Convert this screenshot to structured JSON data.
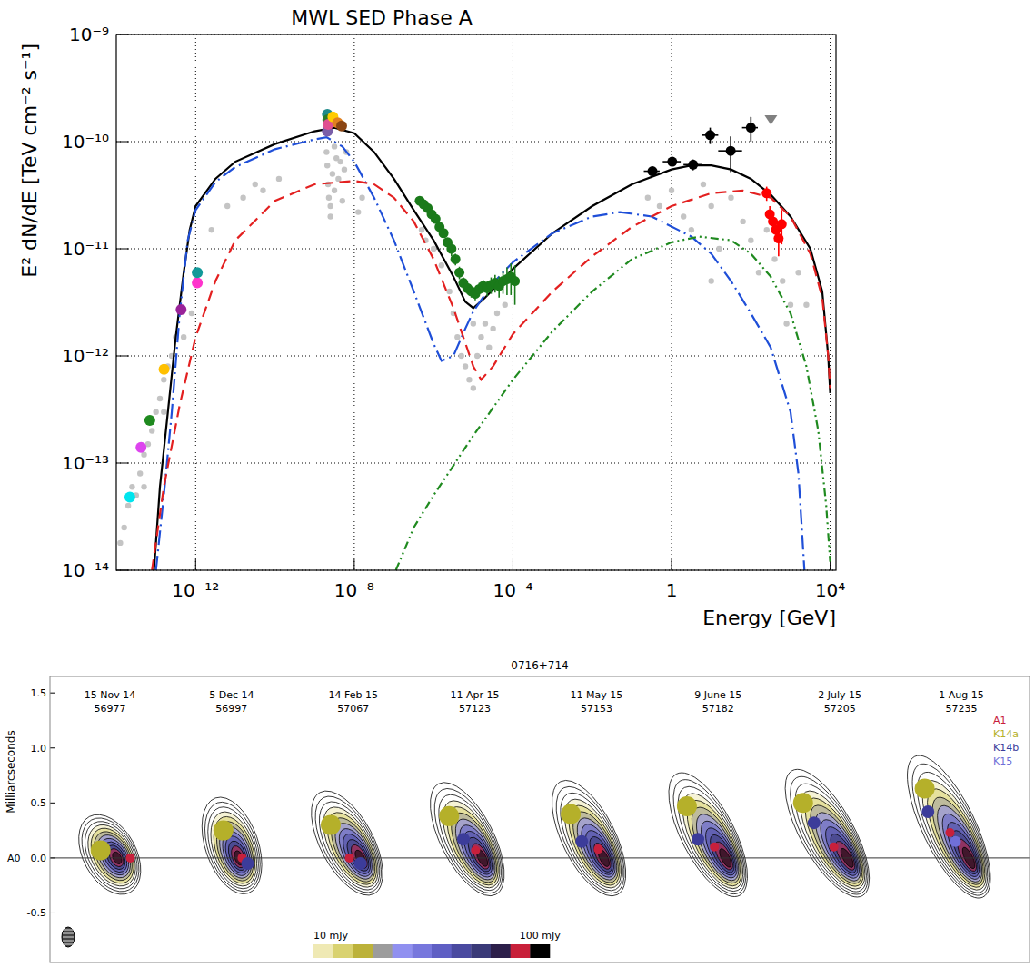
{
  "chart_data": [
    {
      "type": "scatter",
      "title": "MWL SED Phase A",
      "x_label": "Energy [GeV]",
      "y_label": "E² dN/dE [TeV cm⁻² s⁻¹]",
      "log": true,
      "grid": true,
      "xlim": [
        1e-14,
        14000
      ],
      "ylim": [
        1e-14,
        1e-09
      ],
      "xticks": [
        {
          "value": 1e-12,
          "label": "10⁻¹²"
        },
        {
          "value": 1e-08,
          "label": "10⁻⁸"
        },
        {
          "value": 0.0001,
          "label": "10⁻⁴"
        },
        1,
        {
          "value": 10000,
          "label": "10⁴"
        }
      ],
      "yticks": [
        {
          "value": 1e-14,
          "label": "10⁻¹⁴"
        },
        {
          "value": 1e-13,
          "label": "10⁻¹³"
        },
        {
          "value": 1e-12,
          "label": "10⁻¹²"
        },
        {
          "value": 1e-11,
          "label": "10⁻¹¹"
        },
        {
          "value": 1e-10,
          "label": "10⁻¹⁰"
        },
        {
          "value": 1e-09,
          "label": "10⁻⁹"
        }
      ],
      "series": [
        {
          "type": "scatter",
          "marker": "circle",
          "color": "#c4c4c4",
          "x": [
            1.26e-14,
            1.58e-14,
            2e-14,
            2.51e-14,
            3.16e-14,
            3.98e-14,
            5.01e-14,
            6.31e-14,
            7.94e-14,
            1e-13,
            1.26e-13,
            1.58e-13,
            2e-13,
            2.51e-13,
            3.16e-13,
            1.58e-13,
            5.01e-14,
            5.01e-13,
            7.94e-13,
            2.51e-12,
            6.31e-12,
            1.58e-11,
            3.16e-11,
            5.01e-11,
            1.26e-10,
            2e-09,
            2.09e-09,
            2.19e-09,
            2.29e-09,
            2.51e-09,
            2.82e-09,
            3.16e-09,
            3.55e-09,
            3.98e-09,
            4.47e-09,
            5.01e-09,
            5.62e-09,
            6.31e-09,
            2.51e-09,
            3.16e-09,
            1.26e-08,
            1.58e-08,
            5.01e-07,
            6.31e-07,
            1e-06,
            1.58e-06,
            2.51e-06,
            3.16e-06,
            3.98e-06,
            5.01e-06,
            6.31e-06,
            7.94e-06,
            1e-05,
            1.26e-05,
            1.58e-05,
            2e-05,
            2.51e-05,
            3.16e-05,
            3.98e-05,
            6.31e-05,
            1e-05,
            0.251,
            0.501,
            1,
            2,
            3.16,
            6.31,
            10,
            15.8,
            31.6,
            63.1,
            100,
            158,
            251,
            398,
            631,
            1000,
            1580,
            2510,
            794,
            10
          ],
          "values": [
            1.8e-14,
            2.5e-14,
            4e-14,
            6e-14,
            5e-14,
            8e-14,
            1.2e-13,
            1.5e-13,
            2e-13,
            3e-13,
            4e-13,
            6e-13,
            8e-13,
            1e-12,
            1.5e-12,
            3e-13,
            6e-14,
            1.5e-12,
            2.5e-12,
            1.5e-11,
            2.5e-11,
            3e-11,
            4e-11,
            3.5e-11,
            4.5e-11,
            8e-11,
            6e-11,
            4e-11,
            3e-11,
            2.5e-11,
            5e-11,
            3.5e-11,
            7e-11,
            4.5e-11,
            6.5e-11,
            2.8e-11,
            5.5e-11,
            8e-11,
            2e-11,
            9e-11,
            2.2e-11,
            3e-11,
            1.5e-11,
            1.2e-11,
            1e-11,
            7e-12,
            4e-12,
            2.5e-12,
            1.5e-12,
            1e-12,
            8e-13,
            6e-13,
            5e-13,
            1e-12,
            1.5e-12,
            2e-12,
            1.2e-12,
            1.8e-12,
            2.5e-12,
            3e-12,
            2e-12,
            3e-11,
            2.5e-11,
            3.5e-11,
            2e-11,
            1.5e-11,
            4e-11,
            2.5e-11,
            1e-11,
            3e-11,
            1.8e-11,
            1.2e-11,
            6e-12,
            1.5e-11,
            8e-12,
            5e-12,
            3e-12,
            6e-12,
            3e-12,
            2e-12,
            5e-12
          ]
        },
        {
          "type": "line",
          "line_style": "solid",
          "color": "#000000",
          "x": [
            8.91e-14,
            1.26e-13,
            2e-13,
            3.16e-13,
            5.01e-13,
            7.08e-13,
            1e-12,
            3.16e-12,
            1e-11,
            1e-10,
            1e-09,
            3.16e-09,
            1e-08,
            3.16e-08,
            1e-07,
            3.16e-07,
            1e-06,
            3.16e-06,
            6.31e-06,
            1e-05,
            2e-05,
            0.0001,
            0.001,
            0.01,
            0.1,
            1,
            3.16,
            10,
            31.6,
            100,
            316,
            1000,
            3160,
            6310,
            8910,
            10000
          ],
          "values": [
            1e-14,
            6e-14,
            3e-13,
            1.5e-12,
            6e-12,
            1.5e-11,
            2.5e-11,
            4.5e-11,
            6.5e-11,
            9.5e-11,
            1.25e-10,
            1.35e-10,
            1.2e-10,
            8e-11,
            4.5e-11,
            2.3e-11,
            1.2e-11,
            5.5e-12,
            3.2e-12,
            2.8e-12,
            3.5e-12,
            6.5e-12,
            1.4e-11,
            2.5e-11,
            4e-11,
            5.5e-11,
            6e-11,
            6e-11,
            5.5e-11,
            4.5e-11,
            3.2e-11,
            2e-11,
            1e-11,
            4e-12,
            1e-12,
            4.5e-13
          ]
        },
        {
          "type": "line",
          "line_style": "dash-dot",
          "color": "#1f4fd8",
          "x": [
            1e-13,
            1.58e-13,
            2.51e-13,
            3.98e-13,
            6.31e-13,
            1e-12,
            3.16e-12,
            1e-11,
            1e-10,
            1e-09,
            2e-09,
            5.01e-09,
            1e-08,
            3.16e-08,
            1e-07,
            3.16e-07,
            1e-06,
            1.58e-06,
            3.16e-06,
            6.31e-06,
            1e-05,
            3.16e-05,
            0.0001,
            0.001,
            0.01,
            0.0501,
            0.316,
            3.16,
            10,
            31.6,
            100,
            316,
            1000,
            1580,
            2240
          ],
          "values": [
            1e-14,
            5e-14,
            3e-13,
            2.5e-12,
            1.2e-11,
            2.3e-11,
            4.2e-11,
            5.8e-11,
            8.5e-11,
            1.05e-10,
            1.1e-10,
            9e-11,
            6.5e-11,
            3e-11,
            1.2e-11,
            4e-12,
            1.3e-12,
            9e-13,
            1e-12,
            1.8e-12,
            2.6e-12,
            4.8e-12,
            7.5e-12,
            1.4e-11,
            2e-11,
            2.2e-11,
            2e-11,
            1.3e-11,
            9e-12,
            5e-12,
            2.5e-12,
            1.2e-12,
            3e-13,
            8e-14,
            1e-14
          ]
        },
        {
          "type": "line",
          "line_style": "dashed",
          "color": "#e32020",
          "x": [
            7.94e-14,
            1.58e-13,
            3.98e-13,
            1e-12,
            3.16e-12,
            1e-11,
            1e-10,
            1e-09,
            1e-08,
            3.16e-08,
            1e-07,
            3.16e-07,
            1e-06,
            3.16e-06,
            1e-05,
            1.58e-05,
            3.16e-05,
            0.0001,
            0.001,
            0.01,
            0.1,
            1,
            10,
            63.1,
            316,
            1000,
            3160,
            6310,
            8910,
            10000
          ],
          "values": [
            1e-14,
            6e-14,
            3.5e-13,
            1.5e-12,
            5e-12,
            1.2e-11,
            2.8e-11,
            4e-11,
            4.3e-11,
            4e-11,
            3e-11,
            1.8e-11,
            8e-12,
            2.8e-12,
            8e-13,
            6e-13,
            8e-13,
            1.6e-12,
            4e-12,
            8.5e-12,
            1.6e-11,
            2.5e-11,
            3.3e-11,
            3.5e-11,
            3e-11,
            2e-11,
            9e-12,
            3.5e-12,
            1e-12,
            5e-13
          ]
        },
        {
          "type": "line",
          "line_style": "dash-dot-dot",
          "color": "#1f8a1f",
          "x": [
            1.12e-07,
            3.16e-07,
            1e-06,
            1e-05,
            0.0001,
            0.001,
            0.01,
            0.1,
            1,
            5.01,
            31.6,
            100,
            316,
            1000,
            2510,
            5010,
            7940,
            10000
          ],
          "values": [
            1e-14,
            2.5e-14,
            5e-14,
            1.8e-13,
            6e-13,
            1.7e-12,
            4e-12,
            8e-12,
            1.15e-11,
            1.3e-11,
            1.2e-11,
            9e-12,
            5.5e-12,
            2.5e-12,
            8e-13,
            2e-13,
            4e-14,
            1.2e-14
          ]
        },
        {
          "type": "scatter",
          "marker": "circle",
          "colors": [
            "#00e5ee",
            "#dd44ee",
            "#1f8a1f",
            "#ffc000",
            "#992299",
            "#ff33cc",
            "#119999"
          ],
          "x": [
            2.2e-14,
            4.2e-14,
            7e-14,
            1.6e-13,
            4.3e-13,
            1.1e-12,
            1.1e-12
          ],
          "values": [
            4.8e-14,
            1.4e-13,
            2.5e-13,
            7.5e-13,
            2.7e-12,
            4.8e-12,
            6e-12
          ]
        },
        {
          "type": "scatter",
          "marker": "circle",
          "colors": [
            "#7a5ea8",
            "#1e8a8a",
            "#2a7a2a",
            "#e05090",
            "#ffcc00",
            "#e08020",
            "#8b4513"
          ],
          "x": [
            2.1e-09,
            2.1e-09,
            2.15e-09,
            2.2e-09,
            2.9e-09,
            3.8e-09,
            4.8e-09
          ],
          "values": [
            1.25e-10,
            1.8e-10,
            1.6e-10,
            1.45e-10,
            1.7e-10,
            1.5e-10,
            1.4e-10
          ]
        },
        {
          "type": "scatter",
          "marker": "circle",
          "color": "#1a7a1a",
          "x": [
            4.47e-07,
            5.62e-07,
            7.08e-07,
            8.91e-07,
            1.12e-06,
            1.41e-06,
            1.78e-06,
            2.24e-06,
            2.82e-06,
            3.55e-06,
            4.47e-06,
            5.62e-06,
            7.08e-06,
            8.91e-06,
            1.12e-05,
            1.41e-05,
            1.78e-05,
            2.24e-05,
            2.82e-05,
            3.55e-05,
            4.47e-05,
            5.62e-05,
            7.08e-05,
            8.91e-05,
            0.000112
          ],
          "values": [
            2.8e-11,
            2.6e-11,
            2.4e-11,
            2.1e-11,
            1.9e-11,
            1.6e-11,
            1.4e-11,
            1.15e-11,
            1e-11,
            8e-12,
            6e-12,
            4.8e-12,
            4.3e-12,
            4e-12,
            3.8e-12,
            4.2e-12,
            4.5e-12,
            4.3e-12,
            4.6e-12,
            4.8e-12,
            4.5e-12,
            5e-12,
            5.2e-12,
            5.5e-12,
            5e-12
          ],
          "errors": [
            1.5e-12,
            1.5e-12,
            1.5e-12,
            1.2e-12,
            1.2e-12,
            1e-12,
            1e-12,
            1e-12,
            1.5e-12,
            1e-12,
            8e-13,
            6e-13,
            5e-13,
            5e-13,
            5e-13,
            6e-13,
            6e-13,
            7e-13,
            8e-13,
            9e-13,
            1e-12,
            1.2e-12,
            1.5e-12,
            1.8e-12,
            2e-12
          ]
        },
        {
          "type": "scatter",
          "marker": "circle",
          "color": "#000000",
          "x": [
            0.33,
            1.04,
            3.5,
            9.4,
            31,
            100
          ],
          "values": [
            5.3e-11,
            6.5e-11,
            6.1e-11,
            1.15e-10,
            8.2e-11,
            1.35e-10
          ],
          "errors": [
            5e-12,
            4e-12,
            7e-12,
            2e-11,
            3e-11,
            3.5e-11
          ],
          "x_bins": [
            [
              0.2,
              0.5
            ],
            [
              0.6,
              1.7
            ],
            [
              2,
              6
            ],
            [
              6,
              15
            ],
            [
              15,
              60
            ],
            [
              60,
              150
            ]
          ]
        },
        {
          "type": "scatter",
          "marker": "triangle-down",
          "color": "#808080",
          "x": [
            320
          ],
          "values": [
            1.6e-10
          ]
        },
        {
          "type": "scatter",
          "marker": "circle",
          "color": "#ff0000",
          "x": [
            250,
            300,
            360,
            430,
            500,
            600
          ],
          "values": [
            3.3e-11,
            2.1e-11,
            1.8e-11,
            1.5e-11,
            1.25e-11,
            1.7e-11
          ],
          "errors": [
            5e-12,
            4e-12,
            4e-12,
            3.5e-12,
            4e-12,
            6e-12
          ]
        }
      ]
    },
    {
      "type": "scatter",
      "title": "0716+714",
      "y_label": "Milliarcseconds",
      "categories": [
        "15 Nov 14",
        "5 Dec 14",
        "14 Feb 15",
        "11 Apr 15",
        "11 May 15",
        "9 June 15",
        "2 July 15",
        "1 Aug 15"
      ],
      "mjd": [
        56977,
        56997,
        57067,
        57123,
        57153,
        57182,
        57205,
        57235
      ],
      "ylim": [
        -0.95,
        1.65
      ],
      "yticks": [
        {
          "value": -0.5,
          "label": "-0.5"
        },
        {
          "value": 0,
          "label": "0.0"
        },
        {
          "value": 0.5,
          "label": "0.5"
        },
        {
          "value": 1,
          "label": "1.0"
        },
        {
          "value": 1.5,
          "label": "1.5"
        }
      ],
      "reference_label": "A0",
      "reference_value": 0,
      "legend": "top-right",
      "series": [
        {
          "name": "A1",
          "color": "#c8203c",
          "marker": "circle",
          "x": [
            0.12,
            0.03,
            -0.1,
            -0.06,
            -0.05,
            -0.1,
            -0.12,
            -0.17
          ],
          "values": [
            0,
            0,
            0,
            0.07,
            0.08,
            0.1,
            0.1,
            0.23
          ]
        },
        {
          "name": "K14a",
          "color": "#b5b02a",
          "marker": "circle",
          "x": [
            -0.15,
            -0.14,
            -0.27,
            -0.3,
            -0.3,
            -0.35,
            -0.4,
            -0.4
          ],
          "values": [
            0.07,
            0.25,
            0.3,
            0.38,
            0.4,
            0.47,
            0.5,
            0.63
          ]
        },
        {
          "name": "K14b",
          "color": "#3c3c9a",
          "marker": "circle",
          "x": [
            null,
            0.08,
            0,
            -0.17,
            -0.2,
            -0.25,
            -0.3,
            -0.37
          ],
          "values": [
            null,
            -0.05,
            -0.05,
            0.17,
            0.15,
            0.17,
            0.32,
            0.42
          ]
        },
        {
          "name": "K15",
          "color": "#7070d8",
          "marker": "circle",
          "x": [
            null,
            null,
            null,
            null,
            null,
            null,
            null,
            -0.12
          ],
          "values": [
            null,
            null,
            null,
            null,
            null,
            null,
            null,
            0.15
          ]
        }
      ],
      "colorbar": {
        "range": [
          10,
          140
        ],
        "log": true,
        "ticks": [
          {
            "value": 10,
            "label": "10 mJy"
          },
          {
            "value": 100,
            "label": "100 mJy"
          }
        ],
        "colors": [
          "#efe9b4",
          "#d9d270",
          "#bcb23a",
          "#9c9c9c",
          "#9090f0",
          "#7777dd",
          "#5f5fc4",
          "#4a4aa0",
          "#3a3a78",
          "#2c1f4a",
          "#c8203a",
          "#000000"
        ]
      }
    }
  ]
}
